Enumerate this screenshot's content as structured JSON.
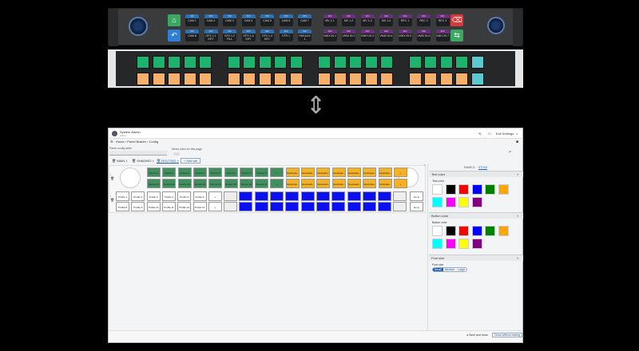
{
  "hardware_panel": {
    "top_row": [
      {
        "tag": "SDI",
        "label": "CAM 1"
      },
      {
        "tag": "SDI",
        "label": "CAM 2"
      },
      {
        "tag": "SDI",
        "label": "CAM 3"
      },
      {
        "tag": "SDI",
        "label": "CAM 4"
      },
      {
        "tag": "SDI",
        "label": "CAM 5"
      },
      {
        "tag": "SDI",
        "label": "CAM 6"
      },
      {
        "tag": "SDI",
        "label": "CAM 7"
      },
      {
        "tag": "SDI",
        "label": "MV 1-1"
      },
      {
        "tag": "SDI",
        "label": "MV 1-2"
      },
      {
        "tag": "SDI",
        "label": "MV 1-3"
      },
      {
        "tag": "SDI",
        "label": "MV 1-4"
      },
      {
        "tag": "SDI",
        "label": "REC 1"
      },
      {
        "tag": "SDI",
        "label": "REC 2"
      },
      {
        "tag": "SDI",
        "label": "REC 3"
      }
    ],
    "bottom_row": [
      {
        "tag": "SDI",
        "label": "CAM 8"
      },
      {
        "tag": "SDI",
        "label": "GFX 1-1 KEY"
      },
      {
        "tag": "SDI",
        "label": "GFX 1-2 FILL"
      },
      {
        "tag": "SDI",
        "label": "GFX 1-3 KEY"
      },
      {
        "tag": "SDI",
        "label": "GFX 1-4 KEY"
      },
      {
        "tag": "SDI",
        "label": "VTR 1"
      },
      {
        "tag": "SDI",
        "label": "HMI AUX 1"
      },
      {
        "tag": "SDI",
        "label": "VMIX IN 1"
      },
      {
        "tag": "SDI",
        "label": "VMIX IN 2"
      },
      {
        "tag": "SDI",
        "label": "VMIX IN 3"
      },
      {
        "tag": "SDI",
        "label": "VMIX IN 4"
      },
      {
        "tag": "SDI",
        "label": "VMIX IN 5"
      },
      {
        "tag": "SDI",
        "label": "VMIX IN 6"
      },
      {
        "tag": "SDI",
        "label": "VMIX IN 7"
      }
    ],
    "colors": {
      "blue_tag": "#2d6fb0",
      "purple_tag": "#6a2f7a",
      "home": "#3aa860",
      "back": "#2f7fd6",
      "delete": "#d63a3a",
      "share": "#3aa860"
    },
    "icons": [
      "home-icon",
      "undo-icon",
      "delete-icon",
      "share-icon"
    ]
  },
  "rack_panel": {
    "colors": {
      "top": "#1db36e",
      "bottom": "#f5b06c",
      "last": "#5cc8d0"
    }
  },
  "app": {
    "user_name": "System Admin",
    "user_role": "Admin",
    "exit_label": "Exit Settings",
    "breadcrumb": [
      "Home",
      "Panel Builder",
      "Config"
    ],
    "config_label": "Panel config label",
    "config_value": "",
    "direct_rules_label": "Direct rules for this page",
    "tabs": [
      "MAIN",
      "SHADING",
      "ROUTING"
    ],
    "active_tab": "ROUTING",
    "add_tab": "Add tab",
    "grid": {
      "row1": [
        "Source 1",
        "Source 2",
        "Source 3",
        "Source 4",
        "Source 5",
        "Source 6",
        "Source 7",
        "Source 8",
        "+",
        "Destinatio...",
        "Destinatio...",
        "Destinatio...",
        "Destinatio...",
        "Destinatio...",
        "Destinatio...",
        "Destinatio...",
        "+"
      ],
      "row2": [
        "Source 10",
        "Source 11",
        "Source 12",
        "Source 13",
        "Source 14",
        "Source 15",
        "Source 16",
        "Source 17",
        "+",
        "Destinatio...",
        "Destinatio...",
        "Destinatio...",
        "Destinatio...",
        "Destinatio...",
        "Destinatio...",
        "Destinatio...",
        "+"
      ],
      "row3": [
        "Profile 1",
        "Profile 2",
        "Profile 3",
        "Profile 4",
        "Profile 5",
        "Profile 6",
        "+",
        "",
        "",
        "",
        "",
        "",
        "",
        "",
        "",
        "",
        "",
        "",
        ""
      ],
      "row4": [
        "Profile 8",
        "Profile 9",
        "Profile 10",
        "Profile 11",
        "Profile 12",
        "Profile 13",
        "+",
        "",
        "",
        "",
        "",
        "",
        "",
        "",
        "",
        "",
        "",
        "",
        ""
      ],
      "row3_end": "Go to Sheet",
      "row4_end": "Go to Routing",
      "colors": {
        "source": "#3f8f5f",
        "destination": "#f5b121",
        "profile": "#ffffff",
        "routing": "#0a10f0"
      }
    },
    "side": {
      "tabs": [
        "PANELS",
        "STYLE"
      ],
      "active_tab": "STYLE",
      "text_color_header": "Text color",
      "text_color_label": "Text color",
      "button_color_header": "Button color",
      "button_color_label": "Button color",
      "font_size_header": "Font size",
      "font_size_label": "Font size",
      "font_sizes": [
        "Small",
        "Medium",
        "Large"
      ],
      "font_size_selected": "Small",
      "palette": [
        "#ffffff",
        "#000000",
        "#ff0000",
        "#0000ff",
        "#008000",
        "#ffa500",
        "#00ffff",
        "#ff00ff",
        "#ffff00",
        "#800080"
      ]
    },
    "footer": {
      "save": "Save and close",
      "close": "Close without saving"
    }
  }
}
